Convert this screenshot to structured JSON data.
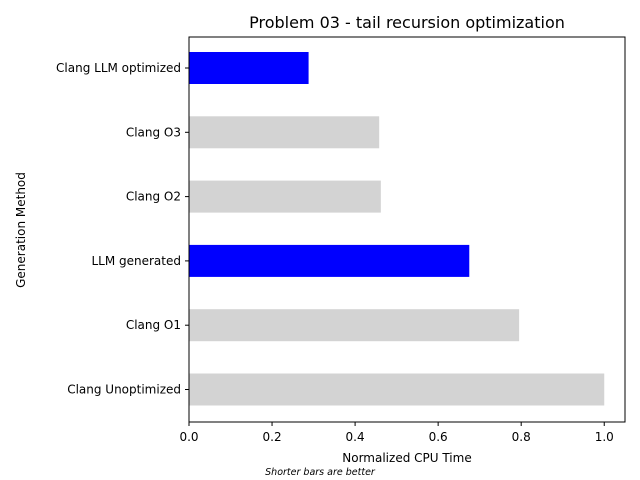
{
  "chart_data": {
    "type": "bar",
    "orientation": "horizontal",
    "title": "Problem 03 - tail recursion optimization",
    "xlabel": "Normalized CPU Time",
    "ylabel": "Generation Method",
    "annotation": "Shorter bars are better",
    "categories": [
      "Clang Unoptimized",
      "Clang O1",
      "LLM generated",
      "Clang O2",
      "Clang O3",
      "Clang LLM optimized"
    ],
    "values": [
      1.0,
      0.795,
      0.675,
      0.462,
      0.458,
      0.288
    ],
    "bar_colors": [
      "#d3d3d3",
      "#d3d3d3",
      "#0000ff",
      "#d3d3d3",
      "#d3d3d3",
      "#0000ff"
    ],
    "xlim": [
      0,
      1.05
    ],
    "xticks": [
      "0.0",
      "0.2",
      "0.4",
      "0.6",
      "0.8",
      "1.0"
    ],
    "grid": false,
    "legend": "none"
  }
}
